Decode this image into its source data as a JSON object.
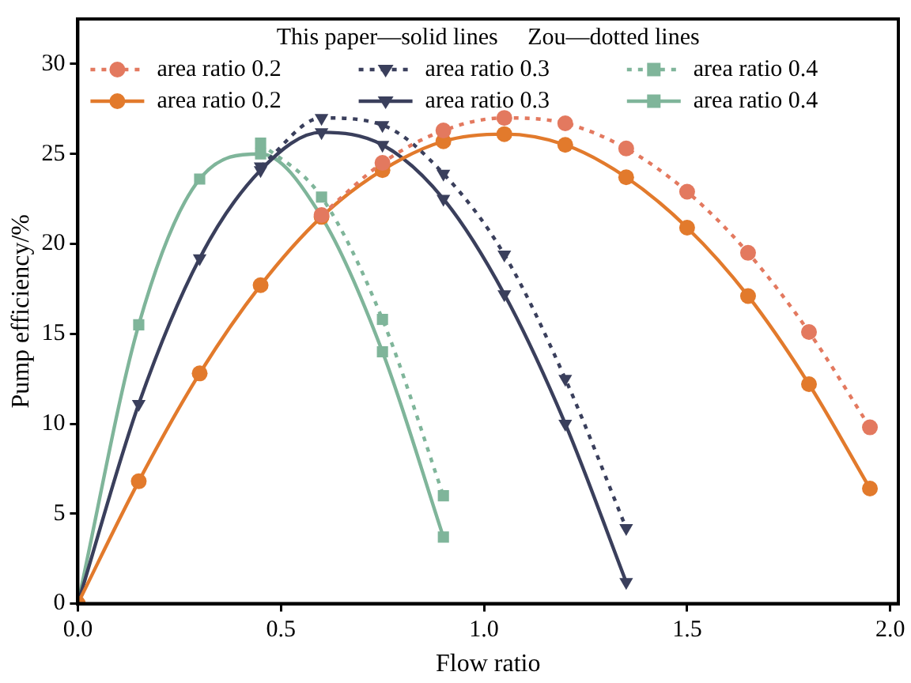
{
  "chart_data": {
    "type": "line",
    "xlabel": "Flow ratio",
    "ylabel": "Pump efficiency/%",
    "legend_title": "This paper—solid lines     Zou—dotted lines",
    "xlim": [
      0,
      2.02
    ],
    "xticks": [
      {
        "value": 0,
        "label": "0.0"
      },
      0.5,
      {
        "value": 1,
        "label": "1.0"
      },
      1.5,
      {
        "value": 2,
        "label": "2.0"
      }
    ],
    "ylim": [
      0,
      32.5
    ],
    "yticks": [
      0,
      5,
      10,
      15,
      20,
      25,
      30
    ],
    "grid": false,
    "legend": "top",
    "series": [
      {
        "name": "area ratio 0.2",
        "color": "#e3795f",
        "marker": "circle",
        "line_style": "dotted",
        "x": [
          0.6,
          0.75,
          0.9,
          1.05,
          1.2,
          1.35,
          1.5,
          1.65,
          1.8,
          1.95
        ],
        "values": [
          21.6,
          24.5,
          26.3,
          27.0,
          26.7,
          25.3,
          22.9,
          19.5,
          15.1,
          9.8
        ]
      },
      {
        "name": "area ratio 0.3",
        "color": "#3a3f5c",
        "marker": "triangle",
        "line_style": "dotted",
        "x": [
          0.45,
          0.6,
          0.75,
          0.9,
          1.05,
          1.2,
          1.35
        ],
        "values": [
          24.3,
          27.0,
          26.6,
          23.9,
          19.4,
          12.5,
          4.2
        ]
      },
      {
        "name": "area ratio 0.4",
        "color": "#7fb59a",
        "marker": "square",
        "line_style": "dotted",
        "x": [
          0.45,
          0.6,
          0.75,
          0.9
        ],
        "values": [
          25.6,
          22.6,
          15.8,
          6.0
        ]
      },
      {
        "name": "area ratio 0.2",
        "color": "#e27a2c",
        "marker": "circle",
        "line_style": "solid",
        "x": [
          0,
          0.15,
          0.3,
          0.45,
          0.6,
          0.75,
          0.9,
          1.05,
          1.2,
          1.35,
          1.5,
          1.65,
          1.8,
          1.95
        ],
        "values": [
          0,
          6.8,
          12.8,
          17.7,
          21.5,
          24.1,
          25.7,
          26.1,
          25.5,
          23.7,
          20.9,
          17.1,
          12.2,
          6.4
        ]
      },
      {
        "name": "area ratio 0.3",
        "color": "#3a3f5c",
        "marker": "triangle",
        "line_style": "solid",
        "x": [
          0,
          0.15,
          0.3,
          0.45,
          0.6,
          0.75,
          0.9,
          1.05,
          1.2,
          1.35
        ],
        "values": [
          0,
          11.1,
          19.2,
          24.1,
          26.2,
          25.5,
          22.5,
          17.2,
          10.0,
          1.2
        ]
      },
      {
        "name": "area ratio 0.4",
        "color": "#7fb59a",
        "marker": "square",
        "line_style": "solid",
        "x": [
          0,
          0.15,
          0.3,
          0.45,
          0.6,
          0.75,
          0.9
        ],
        "values": [
          0,
          15.5,
          23.6,
          25.0,
          21.5,
          14.0,
          3.7
        ]
      }
    ]
  }
}
